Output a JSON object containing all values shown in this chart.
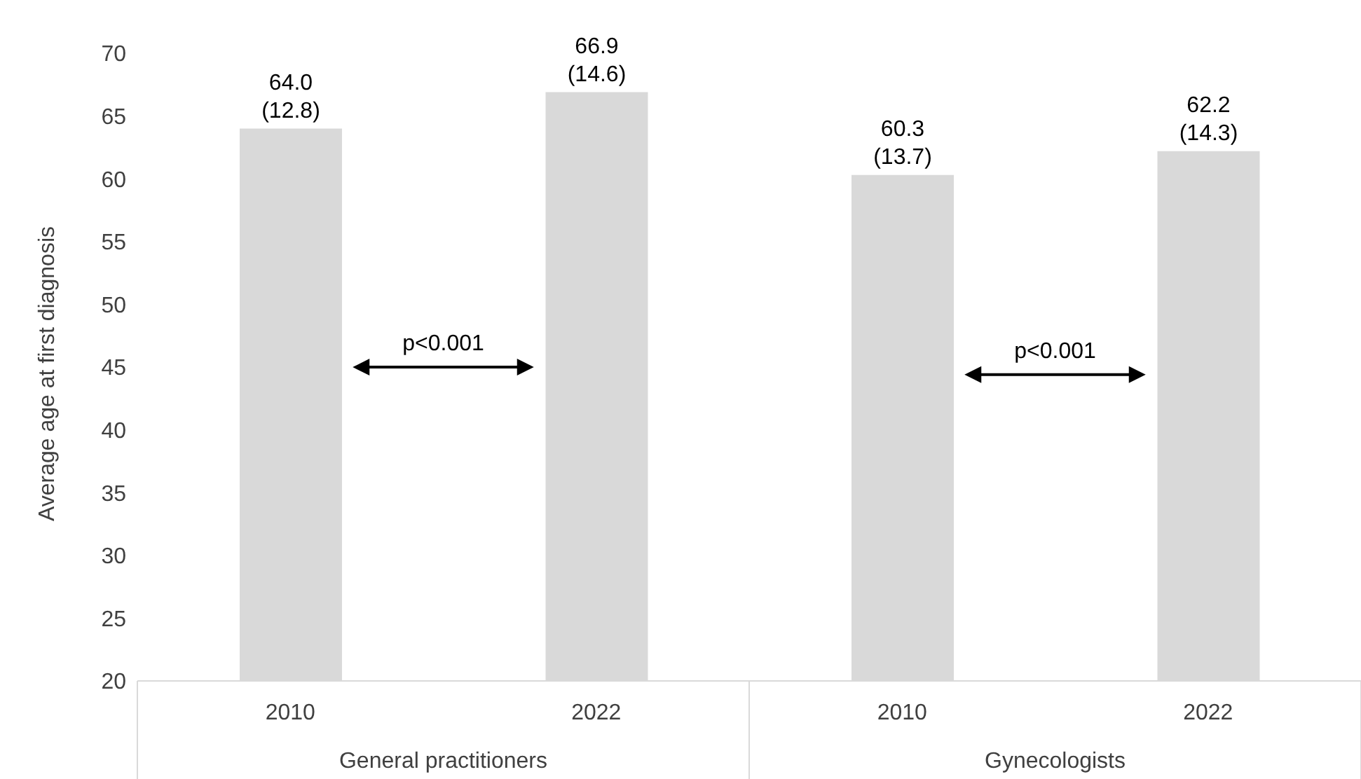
{
  "chart_data": {
    "type": "bar",
    "ylabel": "Average age at first diagnosis",
    "categories": [
      "2010",
      "2022",
      "2010",
      "2022"
    ],
    "values": [
      64.0,
      66.9,
      60.3,
      62.2
    ],
    "value_labels": [
      "64.0\n(12.8)",
      "66.9\n(14.6)",
      "60.3\n(13.7)",
      "62.2\n(14.3)"
    ],
    "color": "#d9d9d9",
    "ylim": [
      20,
      70
    ],
    "yticks": [
      20,
      25,
      30,
      35,
      40,
      45,
      50,
      55,
      60,
      65,
      70
    ],
    "grid": false,
    "annotations": [
      "General practitioners",
      "Gynecologists",
      "p<0.001",
      "p<0.001"
    ]
  }
}
